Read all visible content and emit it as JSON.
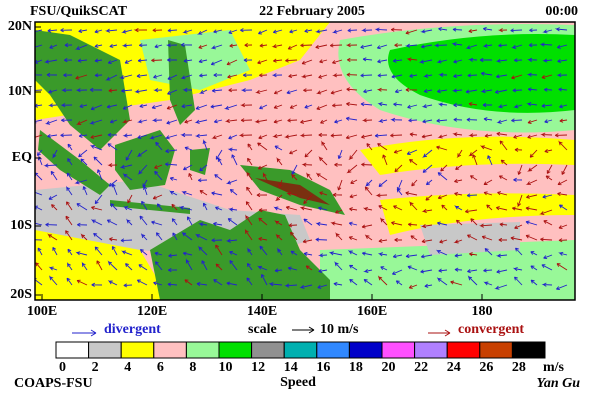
{
  "header": {
    "title": "FSU/QuikSCAT",
    "date": "22 February 2005",
    "time": "00:00"
  },
  "map": {
    "lat_labels": [
      "20N",
      "10N",
      "EQ",
      "10S",
      "20S"
    ],
    "lon_labels": [
      "100E",
      "120E",
      "140E",
      "160E",
      "180"
    ]
  },
  "legend": {
    "divergent": "divergent",
    "scale": "scale",
    "scale_value": "10 m/s",
    "convergent": "convergent"
  },
  "colorbar": {
    "colors": [
      "#ffffff",
      "#c8c8c8",
      "#ffff00",
      "#ffc0c0",
      "#98f898",
      "#00e000",
      "#909090",
      "#00b0b0",
      "#3088ff",
      "#0000c8",
      "#ff50ff",
      "#b080ff",
      "#ff0000",
      "#c84000",
      "#000000"
    ],
    "labels": [
      0,
      2,
      4,
      6,
      8,
      10,
      12,
      14,
      16,
      18,
      20,
      22,
      24,
      26,
      28
    ],
    "unit": "m/s",
    "title": "Speed"
  },
  "footer": {
    "left": "COAPS-FSU",
    "right": "Yan Gu"
  }
}
